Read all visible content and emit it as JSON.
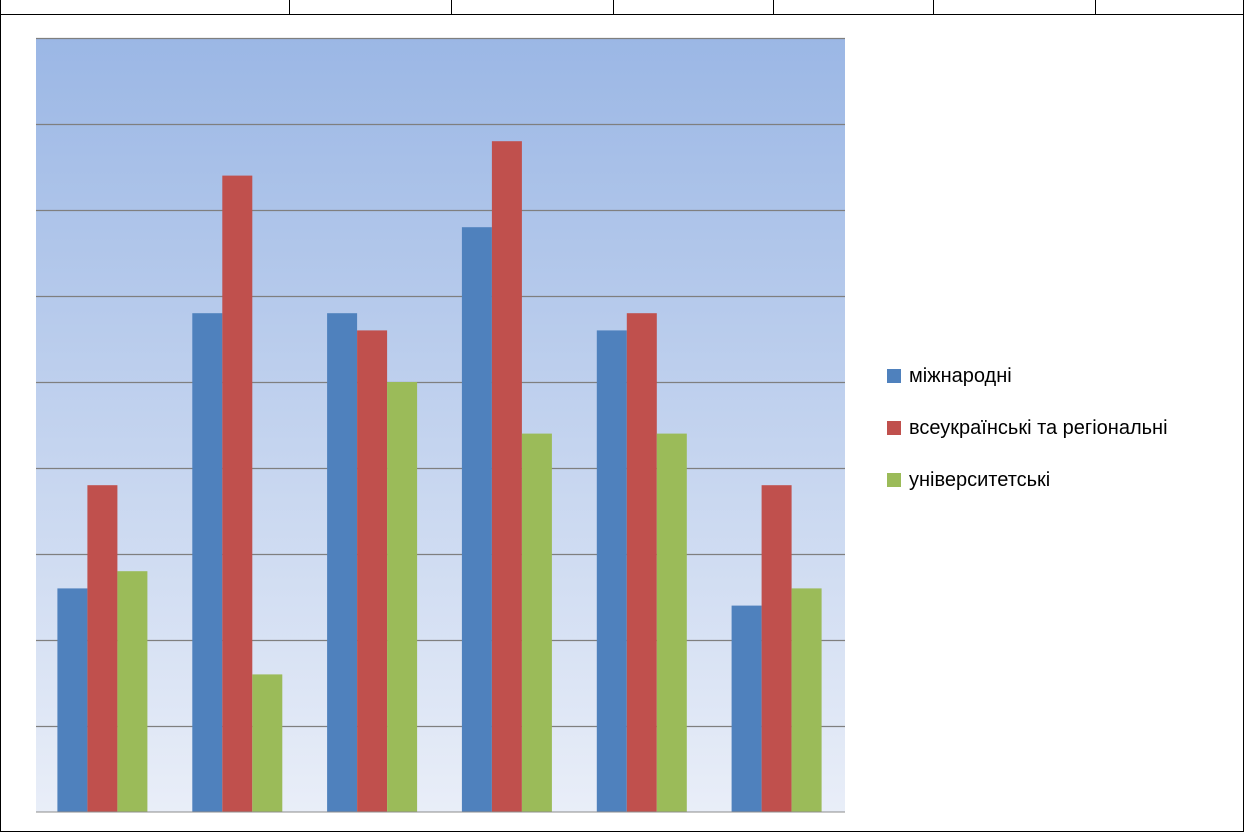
{
  "chart_data": {
    "type": "bar",
    "categories": [
      "",
      "",
      "",
      "",
      "",
      ""
    ],
    "series": [
      {
        "name": "міжнародні",
        "color": "#4F81BD",
        "values": [
          13,
          29,
          29,
          34,
          28,
          12
        ]
      },
      {
        "name": "всеукраїнські та регіональні",
        "color": "#C0504D",
        "values": [
          19,
          37,
          28,
          39,
          29,
          19
        ]
      },
      {
        "name": "університетські",
        "color": "#9BBB59",
        "values": [
          14,
          8,
          25,
          22,
          22,
          13
        ]
      }
    ],
    "ylim": [
      0,
      45
    ],
    "grid": true,
    "legend_position": "right",
    "background_gradient": [
      "#9BB7E5",
      "#E9EEF8"
    ]
  }
}
